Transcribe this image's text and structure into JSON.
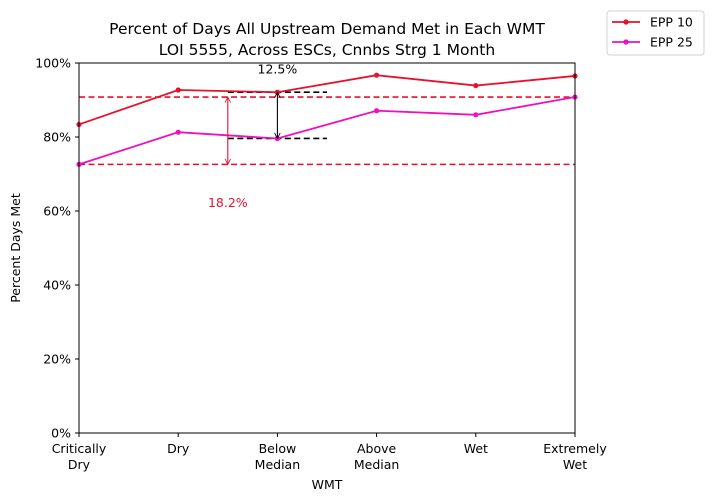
{
  "chart_data": {
    "type": "line",
    "title": "Percent of Days All Upstream Demand Met in Each WMT",
    "subtitle": "LOI 5555, Across ESCs, Cnnbs Strg 1 Month",
    "xlabel": "WMT",
    "ylabel": "Percent Days Met",
    "categories": [
      "Critically Dry",
      "Dry",
      "Below Median",
      "Above Median",
      "Wet",
      "Extremely Wet"
    ],
    "ylim": [
      0,
      100
    ],
    "yticks": [
      0,
      20,
      40,
      60,
      80,
      100
    ],
    "ytick_labels": [
      "0%",
      "20%",
      "40%",
      "60%",
      "80%",
      "100%"
    ],
    "grid": false,
    "legend_placement": "upper-right-outside",
    "series": [
      {
        "name": "EPP 10",
        "color": "#e8112d",
        "values": [
          83.4,
          92.7,
          92.1,
          96.7,
          93.9,
          96.5
        ]
      },
      {
        "name": "EPP 25",
        "color": "#f00fbe",
        "values": [
          72.6,
          81.3,
          79.6,
          87.1,
          86.0,
          90.8
        ]
      }
    ],
    "reference_lines": [
      {
        "y": 90.8,
        "color": "#e8112d",
        "style": "dashed",
        "span": "full"
      },
      {
        "y": 72.6,
        "color": "#e8112d",
        "style": "dashed",
        "span": "full"
      },
      {
        "y": 92.1,
        "color": "#000000",
        "style": "dashed",
        "x_from": 1.5,
        "x_to": 2.5
      },
      {
        "y": 79.6,
        "color": "#000000",
        "style": "dashed",
        "x_from": 1.5,
        "x_to": 2.5
      }
    ],
    "annotations": [
      {
        "text": "12.5%",
        "color": "#000000",
        "x": 2,
        "y": 98.5,
        "arrow_from": 79.6,
        "arrow_to": 92.1
      },
      {
        "text": "18.2%",
        "color": "#e8112d",
        "x": 1.5,
        "y": 62.5,
        "arrow_x": 1.5,
        "arrow_from": 72.6,
        "arrow_to": 90.8
      }
    ]
  }
}
